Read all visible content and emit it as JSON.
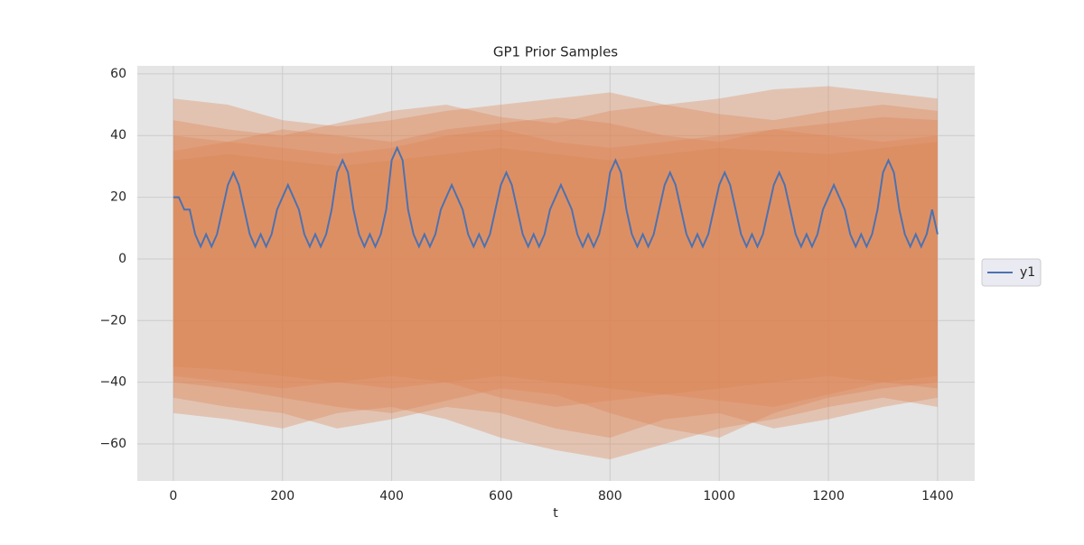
{
  "chart_data": {
    "type": "line",
    "title": "GP1 Prior Samples",
    "xlabel": "t",
    "x": [
      0,
      10,
      20,
      30,
      40,
      50,
      60,
      70,
      80,
      90,
      100,
      110,
      120,
      130,
      140,
      150,
      160,
      170,
      180,
      190,
      200,
      210,
      220,
      230,
      240,
      250,
      260,
      270,
      280,
      290,
      300,
      310,
      320,
      330,
      340,
      350,
      360,
      370,
      380,
      390,
      400,
      410,
      420,
      430,
      440,
      450,
      460,
      470,
      480,
      490,
      500,
      510,
      520,
      530,
      540,
      550,
      560,
      570,
      580,
      590,
      600,
      610,
      620,
      630,
      640,
      650,
      660,
      670,
      680,
      690,
      700,
      710,
      720,
      730,
      740,
      750,
      760,
      770,
      780,
      790,
      800,
      810,
      820,
      830,
      840,
      850,
      860,
      870,
      880,
      890,
      900,
      910,
      920,
      930,
      940,
      950,
      960,
      970,
      980,
      990,
      1000,
      1010,
      1020,
      1030,
      1040,
      1050,
      1060,
      1070,
      1080,
      1090,
      1100,
      1110,
      1120,
      1130,
      1140,
      1150,
      1160,
      1170,
      1180,
      1190,
      1200,
      1210,
      1220,
      1230,
      1240,
      1250,
      1260,
      1270,
      1280,
      1290,
      1300,
      1310,
      1320,
      1330,
      1340,
      1350,
      1360,
      1370,
      1380,
      1390,
      1400
    ],
    "series": [
      {
        "name": "y1",
        "color": "#4c72b0",
        "values": [
          20,
          20,
          16,
          16,
          8,
          4,
          8,
          4,
          8,
          16,
          24,
          28,
          24,
          16,
          8,
          4,
          8,
          4,
          8,
          16,
          20,
          24,
          20,
          16,
          8,
          4,
          8,
          4,
          8,
          16,
          28,
          32,
          28,
          16,
          8,
          4,
          8,
          4,
          8,
          16,
          32,
          36,
          32,
          16,
          8,
          4,
          8,
          4,
          8,
          16,
          20,
          24,
          20,
          16,
          8,
          4,
          8,
          4,
          8,
          16,
          24,
          28,
          24,
          16,
          8,
          4,
          8,
          4,
          8,
          16,
          20,
          24,
          20,
          16,
          8,
          4,
          8,
          4,
          8,
          16,
          28,
          32,
          28,
          16,
          8,
          4,
          8,
          4,
          8,
          16,
          24,
          28,
          24,
          16,
          8,
          4,
          8,
          4,
          8,
          16,
          24,
          28,
          24,
          16,
          8,
          4,
          8,
          4,
          8,
          16,
          24,
          28,
          24,
          16,
          8,
          4,
          8,
          4,
          8,
          16,
          20,
          24,
          20,
          16,
          8,
          4,
          8,
          4,
          8,
          16,
          28,
          32,
          28,
          16,
          8,
          4,
          8,
          4,
          8,
          16,
          8
        ]
      }
    ],
    "bands": {
      "color": "#dd8452",
      "opacity": 0.35,
      "x": [
        0,
        100,
        200,
        300,
        400,
        500,
        600,
        700,
        800,
        900,
        1000,
        1100,
        1200,
        1300,
        1400
      ],
      "samples": [
        {
          "upper": [
            52,
            50,
            45,
            43,
            45,
            48,
            50,
            52,
            54,
            50,
            52,
            55,
            56,
            54,
            52
          ],
          "lower": [
            -50,
            -52,
            -55,
            -50,
            -48,
            -52,
            -58,
            -62,
            -65,
            -60,
            -55,
            -52,
            -48,
            -45,
            -48
          ]
        },
        {
          "upper": [
            45,
            42,
            40,
            44,
            48,
            50,
            46,
            44,
            48,
            50,
            47,
            45,
            48,
            50,
            48
          ],
          "lower": [
            -45,
            -48,
            -50,
            -55,
            -52,
            -48,
            -50,
            -55,
            -58,
            -52,
            -50,
            -55,
            -52,
            -48,
            -45
          ]
        },
        {
          "upper": [
            40,
            38,
            42,
            40,
            38,
            42,
            44,
            46,
            44,
            40,
            38,
            42,
            44,
            46,
            45
          ],
          "lower": [
            -40,
            -42,
            -45,
            -48,
            -50,
            -46,
            -42,
            -44,
            -50,
            -55,
            -58,
            -50,
            -45,
            -42,
            -40
          ]
        },
        {
          "upper": [
            35,
            38,
            36,
            34,
            36,
            40,
            42,
            38,
            36,
            38,
            40,
            42,
            40,
            38,
            40
          ],
          "lower": [
            -38,
            -40,
            -42,
            -40,
            -38,
            -40,
            -45,
            -48,
            -46,
            -44,
            -46,
            -48,
            -44,
            -40,
            -42
          ]
        },
        {
          "upper": [
            32,
            34,
            32,
            30,
            32,
            34,
            36,
            34,
            32,
            34,
            36,
            35,
            34,
            36,
            38
          ],
          "lower": [
            -35,
            -36,
            -38,
            -40,
            -42,
            -40,
            -38,
            -40,
            -42,
            -44,
            -42,
            -40,
            -38,
            -40,
            -38
          ]
        }
      ]
    },
    "xlim": [
      -66,
      1468
    ],
    "ylim": [
      -72,
      62.6
    ],
    "xticks": [
      0,
      200,
      400,
      600,
      800,
      1000,
      1200,
      1400
    ],
    "yticks": [
      {
        "value": -60,
        "label": "−60"
      },
      {
        "value": -40,
        "label": "−40"
      },
      {
        "value": -20,
        "label": "−20"
      },
      0,
      20,
      40,
      60
    ],
    "grid": true,
    "legend": "right"
  }
}
